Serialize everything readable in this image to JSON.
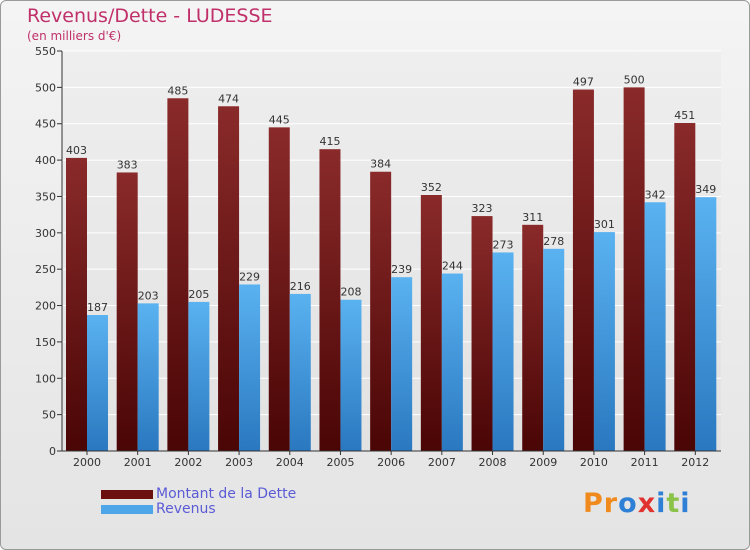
{
  "title": "Revenus/Dette - LUDESSE",
  "subtitle": "(en milliers d'€)",
  "colors": {
    "title": "#c0306a",
    "debt": "#7a1a1a",
    "revenue": "#4ea6e8",
    "legend_text": "#5b5bd6"
  },
  "legend": [
    {
      "label": "Montant de la Dette",
      "color": "#6b0f0f"
    },
    {
      "label": "Revenus",
      "color": "#4ea6e8"
    }
  ],
  "logo": {
    "text": "Proxiti"
  },
  "chart_data": {
    "type": "bar",
    "title": "Revenus/Dette - LUDESSE",
    "subtitle": "(en milliers d'€)",
    "categories": [
      "2000",
      "2001",
      "2002",
      "2003",
      "2004",
      "2005",
      "2006",
      "2007",
      "2008",
      "2009",
      "2010",
      "2011",
      "2012"
    ],
    "series": [
      {
        "name": "Montant de la Dette",
        "values": [
          403,
          383,
          485,
          474,
          445,
          415,
          384,
          352,
          323,
          311,
          497,
          500,
          451
        ]
      },
      {
        "name": "Revenus",
        "values": [
          187,
          203,
          205,
          229,
          216,
          208,
          239,
          244,
          273,
          278,
          301,
          342,
          349
        ]
      }
    ],
    "ylim": [
      0,
      550
    ],
    "yticks": [
      0,
      50,
      100,
      150,
      200,
      250,
      300,
      350,
      400,
      450,
      500,
      550
    ],
    "grid": true,
    "legend_position": "bottom-left"
  }
}
